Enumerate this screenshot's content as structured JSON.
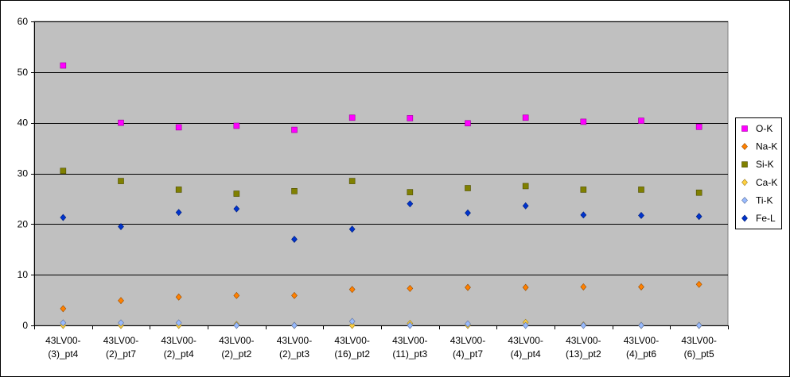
{
  "chart_data": {
    "type": "scatter",
    "title": "",
    "xlabel": "",
    "ylabel": "",
    "ylim": [
      0,
      60
    ],
    "yticks": [
      0,
      10,
      20,
      30,
      40,
      50,
      60
    ],
    "grid": "horizontal major gridlines",
    "plot_background": "#c0c0c0",
    "legend_position": "right",
    "categories": [
      [
        "43LV00-",
        "(3)_pt4"
      ],
      [
        "43LV00-",
        "(2)_pt7"
      ],
      [
        "43LV00-",
        "(2)_pt4"
      ],
      [
        "43LV00-",
        "(2)_pt2"
      ],
      [
        "43LV00-",
        "(2)_pt3"
      ],
      [
        "43LV00-",
        "(16)_pt2"
      ],
      [
        "43LV00-",
        "(11)_pt3"
      ],
      [
        "43LV00-",
        "(4)_pt7"
      ],
      [
        "43LV00-",
        "(4)_pt4"
      ],
      [
        "43LV00-",
        "(13)_pt2"
      ],
      [
        "43LV00-",
        "(4)_pt6"
      ],
      [
        "43LV00-",
        "(6)_pt5"
      ]
    ],
    "series": [
      {
        "name": "O-K",
        "marker": "square",
        "color": "#ff00ff",
        "values": [
          51.3,
          40.0,
          39.1,
          39.4,
          38.6,
          41.0,
          40.9,
          39.9,
          41.0,
          40.2,
          40.4,
          39.2
        ]
      },
      {
        "name": "Na-K",
        "marker": "diamond",
        "color": "#ff8000",
        "values": [
          3.3,
          4.9,
          5.6,
          5.9,
          5.9,
          7.1,
          7.3,
          7.5,
          7.5,
          7.6,
          7.6,
          8.1
        ]
      },
      {
        "name": "Si-K",
        "marker": "square",
        "color": "#808000",
        "values": [
          30.5,
          28.5,
          26.8,
          26.0,
          26.5,
          28.5,
          26.3,
          27.1,
          27.5,
          26.8,
          26.8,
          26.2
        ]
      },
      {
        "name": "Ca-K",
        "marker": "diamond",
        "color": "#ffd040",
        "values": [
          0.0,
          0.0,
          0.0,
          0.2,
          0.0,
          0.0,
          0.4,
          0.0,
          0.6,
          0.1,
          0.0,
          0.0
        ]
      },
      {
        "name": "Ti-K",
        "marker": "diamond",
        "color": "#99bbff",
        "values": [
          0.5,
          0.5,
          0.5,
          0.0,
          0.0,
          0.8,
          0.0,
          0.3,
          0.0,
          0.0,
          0.0,
          0.0
        ]
      },
      {
        "name": "Fe-L",
        "marker": "diamond",
        "color": "#0033cc",
        "values": [
          21.3,
          19.5,
          22.3,
          23.0,
          17.0,
          19.0,
          24.0,
          22.2,
          23.6,
          21.8,
          21.7,
          21.5
        ]
      }
    ]
  }
}
